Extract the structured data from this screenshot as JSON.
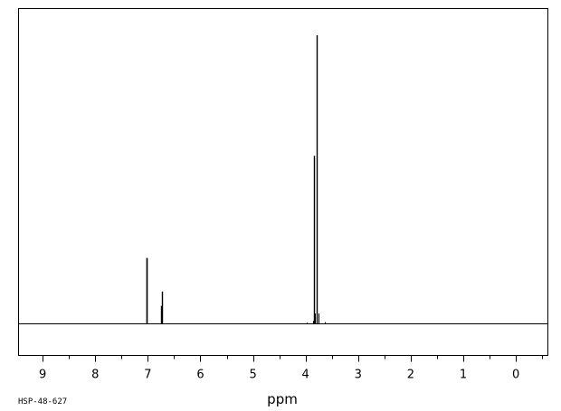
{
  "chart_data": {
    "type": "line",
    "title": "",
    "xlabel": "ppm",
    "ylabel": "",
    "sample_code": "HSP-48-627",
    "x_reversed": true,
    "xlim": [
      9.45,
      -0.6
    ],
    "ylim": [
      0,
      1
    ],
    "tick_values": [
      9,
      8,
      7,
      6,
      5,
      4,
      3,
      2,
      1,
      0
    ],
    "tick_labels": [
      "9",
      "8",
      "7",
      "6",
      "5",
      "4",
      "3",
      "2",
      "1",
      "0"
    ],
    "minor_tick_step": 0.5,
    "grid": false,
    "peaks": [
      {
        "ppm": 7.03,
        "height": 0.228
      },
      {
        "ppm": 7.025,
        "height": 0.228
      },
      {
        "ppm": 6.73,
        "height": 0.112
      },
      {
        "ppm": 6.745,
        "height": 0.062
      },
      {
        "ppm": 3.86,
        "height": 0.01
      },
      {
        "ppm": 3.838,
        "height": 0.582
      },
      {
        "ppm": 3.83,
        "height": 0.036
      },
      {
        "ppm": 3.78,
        "height": 1.0
      },
      {
        "ppm": 3.76,
        "height": 0.036
      },
      {
        "ppm": 3.63,
        "height": 0.006
      },
      {
        "ppm": 3.97,
        "height": 0.004
      }
    ]
  }
}
